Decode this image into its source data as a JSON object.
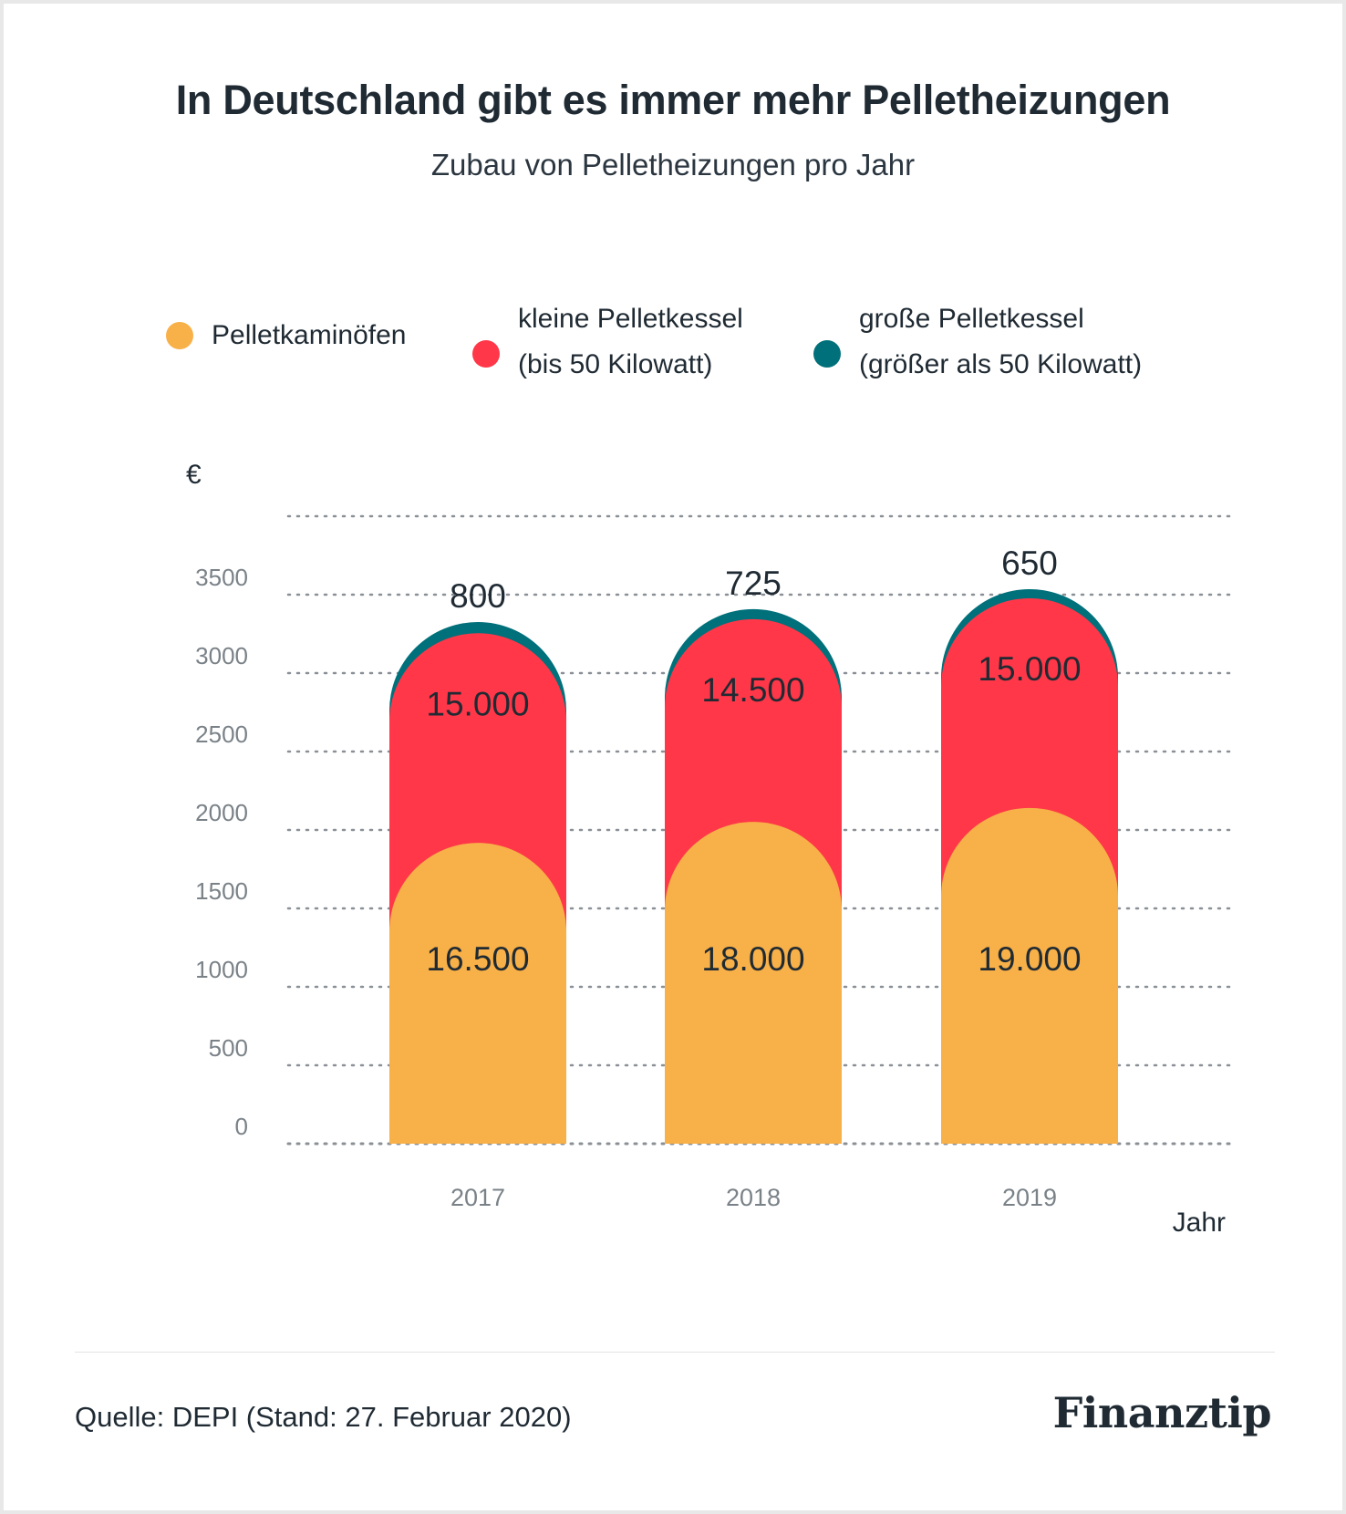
{
  "title": "In Deutschland gibt es immer mehr Pelletheizungen",
  "subtitle": "Zubau von Pelletheizungen pro Jahr",
  "legend": [
    {
      "label": "Pelletkaminöfen",
      "color": "#f8b048"
    },
    {
      "label": "kleine Pelletkessel\n(bis 50 Kilowatt)",
      "color": "#ff3748"
    },
    {
      "label": "große Pelletkessel\n(größer als 50 Kilowatt)",
      "color": "#00707a"
    }
  ],
  "y_unit": "€",
  "x_unit": "Jahr",
  "source": "Quelle: DEPI (Stand: 27. Februar 2020)",
  "brand": "Finanztip",
  "chart_data": {
    "type": "bar",
    "stacked": true,
    "categories": [
      "2017",
      "2018",
      "2019"
    ],
    "series": [
      {
        "name": "Pelletkaminöfen",
        "values": [
          16500,
          18000,
          19000
        ],
        "labels": [
          "16.500",
          "18.000",
          "19.000"
        ],
        "color": "#f8b048"
      },
      {
        "name": "kleine Pelletkessel (bis 50 Kilowatt)",
        "values": [
          15000,
          14500,
          15000
        ],
        "labels": [
          "15.000",
          "14.500",
          "15.000"
        ],
        "color": "#ff3748"
      },
      {
        "name": "große Pelletkessel (größer als 50 Kilowatt)",
        "values": [
          800,
          725,
          650
        ],
        "labels": [
          "800",
          "725",
          "650"
        ],
        "color": "#00707a"
      }
    ],
    "y_ticks": [
      "0",
      "500",
      "1000",
      "1500",
      "2000",
      "2500",
      "3000",
      "3500"
    ],
    "ylabel": "€",
    "xlabel": "Jahr",
    "grid": true,
    "legend_position": "top"
  }
}
